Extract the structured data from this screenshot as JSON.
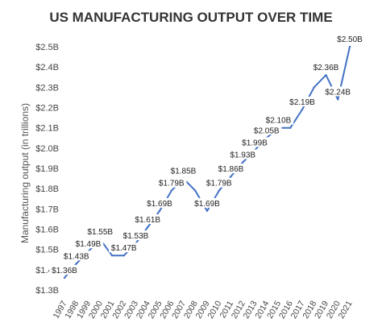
{
  "chart_data": {
    "type": "line",
    "title": "US MANUFACTURING OUTPUT OVER TIME",
    "xlabel": "",
    "ylabel": "Manufacturing output (in trillions)",
    "ylim": [
      1.3,
      2.5
    ],
    "yticks": [
      "$1.3B",
      "$1.4B",
      "$1.5B",
      "$1.6B",
      "$1.7B",
      "$1.8B",
      "$1.9B",
      "$2.0B",
      "$2.1B",
      "$2.2B",
      "$2.3B",
      "$2.4B",
      "$2.5B"
    ],
    "ytick_values": [
      1.3,
      1.4,
      1.5,
      1.6,
      1.7,
      1.8,
      1.9,
      2.0,
      2.1,
      2.2,
      2.3,
      2.4,
      2.5
    ],
    "grid": false,
    "line_color": "#4472c4",
    "categories": [
      "1997",
      "1998",
      "1999",
      "2000",
      "2001",
      "2002",
      "2003",
      "2004",
      "2005",
      "2006",
      "2007",
      "2008",
      "2009",
      "2010",
      "2011",
      "2012",
      "2013",
      "2014",
      "2015",
      "2016",
      "2017",
      "2018",
      "2019",
      "2020",
      "2021"
    ],
    "values": [
      1.36,
      1.43,
      1.49,
      1.55,
      1.47,
      1.47,
      1.53,
      1.61,
      1.69,
      1.79,
      1.85,
      1.79,
      1.69,
      1.79,
      1.86,
      1.93,
      1.99,
      2.05,
      2.1,
      2.1,
      2.19,
      2.3,
      2.36,
      2.24,
      2.5
    ],
    "data_labels": [
      {
        "index": 0,
        "text": "$1.36B"
      },
      {
        "index": 1,
        "text": "$1.43B"
      },
      {
        "index": 2,
        "text": "$1.49B"
      },
      {
        "index": 3,
        "text": "$1.55B"
      },
      {
        "index": 5,
        "text": "$1.47B"
      },
      {
        "index": 6,
        "text": "$1.53B"
      },
      {
        "index": 7,
        "text": "$1.61B"
      },
      {
        "index": 8,
        "text": "$1.69B"
      },
      {
        "index": 9,
        "text": "$1.79B"
      },
      {
        "index": 10,
        "text": "$1.85B"
      },
      {
        "index": 12,
        "text": "$1.69B"
      },
      {
        "index": 13,
        "text": "$1.79B"
      },
      {
        "index": 14,
        "text": "$1.86B"
      },
      {
        "index": 15,
        "text": "$1.93B"
      },
      {
        "index": 16,
        "text": "$1.99B"
      },
      {
        "index": 17,
        "text": "$2.05B"
      },
      {
        "index": 18,
        "text": "$2.10B"
      },
      {
        "index": 20,
        "text": "$2.19B"
      },
      {
        "index": 22,
        "text": "$2.36B"
      },
      {
        "index": 23,
        "text": "$2.24B"
      },
      {
        "index": 24,
        "text": "$2.50B"
      }
    ]
  }
}
